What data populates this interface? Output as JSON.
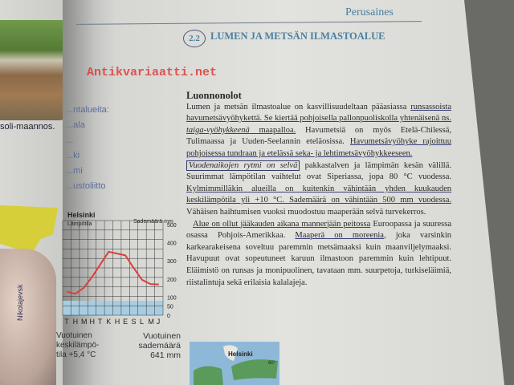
{
  "header": {
    "running_title": "Perusaines",
    "section_number": "2.2",
    "section_title": "LUMEN JA METSÄN ILMASTOALUE"
  },
  "left_page": {
    "caption": "soli-maannos.",
    "fragments": [
      "...ntalueita:",
      "...ala",
      "...",
      "...ki",
      "...mi",
      "...ustoliitto"
    ]
  },
  "watermark": "Antikvariaatti.net",
  "body": {
    "heading": "Luonnonolot",
    "p1": [
      {
        "t": "Lumen ja metsän ilmastoalue on kasvillisuudeltaan pääasiassa ",
        "u": false
      },
      {
        "t": "runsassoista havumetsävyöhykettä. Se kiertää pohjoisella pallonpuoliskolla yhtenäisenä ns. ",
        "u": true
      },
      {
        "t": "taiga-vyöhykkeenä",
        "u": true,
        "i": true
      },
      {
        "t": " maapalloa.",
        "u": true
      },
      {
        "t": " Havumetsiä on myös Etelä-Chilessä, Tulimaassa ja Uuden-Seelannin eteläosissa. ",
        "u": false
      },
      {
        "t": "Havumetsävyöhyke rajoittuu pohjoisessa tundraan ja etelässä seka- ja lehtimetsävyöhykkeeseen.",
        "u": true
      }
    ],
    "p2_boxed": "Vuodenaikojen rytmi on selvä",
    "p2": [
      {
        "t": " pakkastalven ja lämpimän kesän välillä. Suurimmat lämpötilan vaihtelut ovat Siperiassa, jopa 80 °C vuodessa. ",
        "u": false
      },
      {
        "t": "Kylmimmilläkin alueilla on kuitenkin vähintään yhden kuukauden keskilämpötila yli +10 °C. Sademäärä on vähintään 500 mm vuodessa.",
        "u": true
      },
      {
        "t": " Vähäisen haihtumisen vuoksi muodostuu maaperään selvä turvekerros.",
        "u": false
      }
    ],
    "p3": [
      {
        "t": "Alue on ollut jääkauden aikana mannerjään peitossa",
        "u": true
      },
      {
        "t": " Euroopassa ja suuressa osassa Pohjois-Amerikkaa. ",
        "u": false
      },
      {
        "t": "Maaperä on moreenia",
        "u": true
      },
      {
        "t": ", joka varsinkin karkearakeisena soveltuu paremmin metsämaaksi kuin maanviljelymaaksi. Havupuut ovat sopeutuneet karuun ilmastoon paremmin kuin lehtipuut. Eläimistö on runsas ja monipuolinen, tavataan mm. suurpetoja, turkiseläimiä, riistalintuja sekä erilaisia kalalajeja.",
        "u": false
      }
    ]
  },
  "map": {
    "label": "Helsinki",
    "latitude_label": "60°",
    "colors": {
      "sea": "#8fb8d8",
      "forest": "#5a9a5a",
      "land": "#e8e8e0"
    }
  },
  "chart_data": {
    "type": "line",
    "title": "Helsinki",
    "ylabel_left": "Lämpötila",
    "ylabel_right": "Sademäärä mm",
    "categories": [
      "T",
      "H",
      "M",
      "H",
      "T",
      "K",
      "H",
      "E",
      "S",
      "L",
      "M",
      "J"
    ],
    "right_ticks": [
      "500",
      "400",
      "300",
      "200",
      "100",
      "50",
      "0"
    ],
    "ylim": [
      0,
      500
    ],
    "grid": true,
    "values": [
      130,
      118,
      150,
      210,
      280,
      350,
      340,
      330,
      260,
      195,
      172,
      170
    ],
    "line_color": "#d84040",
    "left_vertical_label": "Nikolajevsk",
    "annual_temp": [
      "Vuotuinen",
      "keskilämpö-",
      "tila +5,4 °C"
    ],
    "annual_precip": [
      "Vuotuinen",
      "sademäärä",
      "641 mm"
    ]
  }
}
